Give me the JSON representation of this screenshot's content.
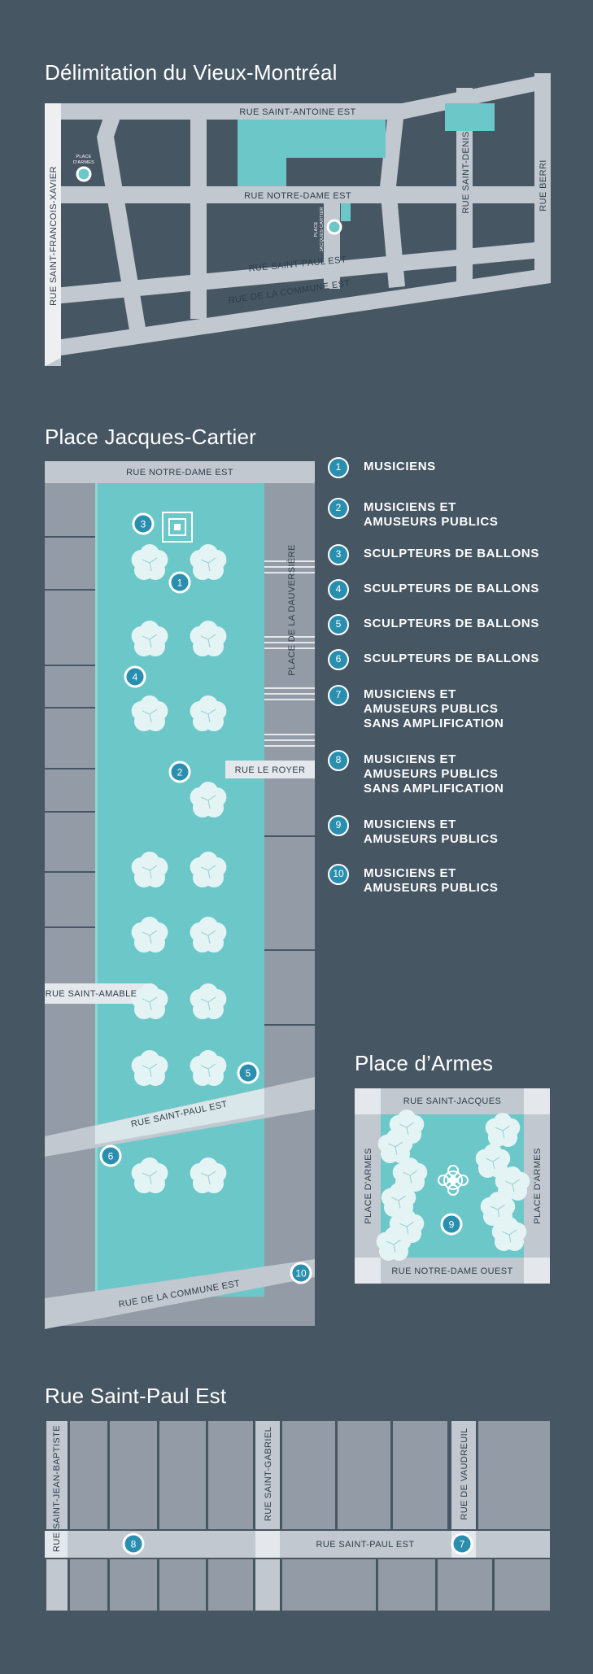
{
  "colors": {
    "background": "#475663",
    "street": "#c1c8d0",
    "block": "#939ba6",
    "plaza": "#6cc7c9",
    "marker": "#2a8fae",
    "tree": "#e4f4f5"
  },
  "map1": {
    "title": "Délimitation du Vieux-Montréal",
    "streets": {
      "saint_antoine": "RUE SAINT-ANTOINE EST",
      "notre_dame": "RUE NOTRE-DAME EST",
      "saint_paul": "RUE SAINT-PAUL EST",
      "commune": "RUE DE LA COMMUNE EST",
      "saint_francois_xavier": "RUE SAINT-FRANCOIS-XAVIER",
      "saint_denis": "RUE SAINT-DENIS",
      "berri": "RUE BERRI"
    },
    "places": {
      "place_armes_line1": "PLACE",
      "place_armes_line2": "D'ARMES",
      "place_jc_line1": "PLACE",
      "place_jc_line2": "JACQUES-CARTIER"
    }
  },
  "map2": {
    "title": "Place Jacques-Cartier",
    "streets": {
      "notre_dame": "RUE NOTRE-DAME EST",
      "dauversiere": "PLACE DE LA DAUVERSIÈRE",
      "le_royer": "RUE LE ROYER",
      "saint_amable": "RUE SAINT-AMABLE",
      "saint_paul": "RUE SAINT-PAUL EST",
      "commune": "RUE DE LA COMMUNE EST"
    },
    "markers": [
      "1",
      "2",
      "3",
      "4",
      "5",
      "6",
      "10"
    ]
  },
  "legend": [
    {
      "num": "1",
      "text": "MUSICIENS"
    },
    {
      "num": "2",
      "text": "MUSICIENS ET\nAMUSEURS PUBLICS"
    },
    {
      "num": "3",
      "text": "SCULPTEURS DE BALLONS"
    },
    {
      "num": "4",
      "text": "SCULPTEURS DE BALLONS"
    },
    {
      "num": "5",
      "text": "SCULPTEURS DE BALLONS"
    },
    {
      "num": "6",
      "text": "SCULPTEURS DE BALLONS"
    },
    {
      "num": "7",
      "text": "MUSICIENS ET\nAMUSEURS PUBLICS\nSANS AMPLIFICATION"
    },
    {
      "num": "8",
      "text": "MUSICIENS ET\nAMUSEURS PUBLICS\nSANS AMPLIFICATION"
    },
    {
      "num": "9",
      "text": "MUSICIENS ET\nAMUSEURS PUBLICS"
    },
    {
      "num": "10",
      "text": "MUSICIENS ET\nAMUSEURS PUBLICS"
    }
  ],
  "map3": {
    "title": "Place d’Armes",
    "streets": {
      "saint_jacques": "RUE SAINT-JACQUES",
      "notre_dame_ouest": "RUE NOTRE-DAME OUEST",
      "place_armes_left": "PLACE D'ARMES",
      "place_armes_right": "PLACE D'ARMES"
    },
    "markers": [
      "9"
    ]
  },
  "map4": {
    "title": "Rue Saint-Paul Est",
    "streets": {
      "saint_jean_baptiste": "RUE SAINT-JEAN-BAPTISTE",
      "saint_gabriel": "RUE SAINT-GABRIEL",
      "vaudreuil": "RUE DE VAUDREUIL",
      "saint_paul": "RUE SAINT-PAUL EST"
    },
    "markers": [
      "8",
      "7"
    ]
  }
}
